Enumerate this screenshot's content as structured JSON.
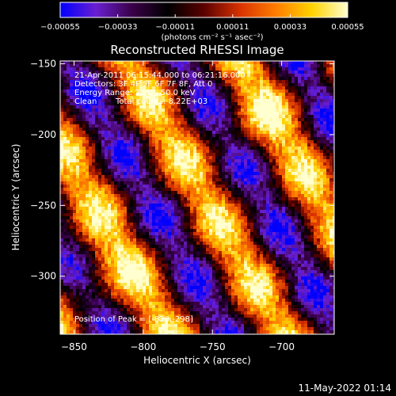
{
  "chart_data": {
    "type": "heatmap",
    "title": "Reconstructed RHESSI Image",
    "xlabel": "Heliocentric X (arcsec)",
    "ylabel": "Heliocentric Y (arcsec)",
    "xlim": [
      -860,
      -662
    ],
    "ylim": [
      -341,
      -148
    ],
    "x_ticks": [
      -850,
      -800,
      -750,
      -700
    ],
    "x_tick_labels": [
      "−850",
      "−800",
      "−750",
      "−700"
    ],
    "y_ticks": [
      -150,
      -200,
      -250,
      -300
    ],
    "y_tick_labels": [
      "−150",
      "−200",
      "−250",
      "−300"
    ],
    "grid": false,
    "colorbar": {
      "position": "top",
      "range": [
        -0.00055,
        0.00055
      ],
      "ticks": [
        -0.00055,
        -0.00033,
        -0.00011,
        0.00011,
        0.00033,
        0.00055
      ],
      "tick_labels": [
        "−0.00055",
        "−0.00033",
        "−0.00011",
        "0.00011",
        "0.00033",
        "0.00055"
      ],
      "unit_label": "(photons cm⁻² s⁻¹ asec⁻²)",
      "colormap": [
        "#0000ff",
        "#6a1fd0",
        "#3a0048",
        "#000000",
        "#5a0000",
        "#d83200",
        "#ff7d00",
        "#ffd200",
        "#ffffd0"
      ]
    },
    "annotations": {
      "time_range": "21-Apr-2011 06:15:44.000 to 06:21:16.000",
      "detectors": "Detectors: 3F 4F 5F 6F 7F 8F, Att 0",
      "energy_range": "Energy Range: 25.0 - 50.0 keV",
      "algorithm": "Clean",
      "total_counts": "Total counts: 8.22E+03",
      "peak_position": "Position of Peak = [-820,-298]"
    },
    "peak": [
      -820,
      -298
    ],
    "value_range": [
      -0.00055,
      0.00055
    ],
    "stripe_orientation_deg": -60
  },
  "footer": {
    "date_stamp": "11-May-2022 01:14"
  }
}
